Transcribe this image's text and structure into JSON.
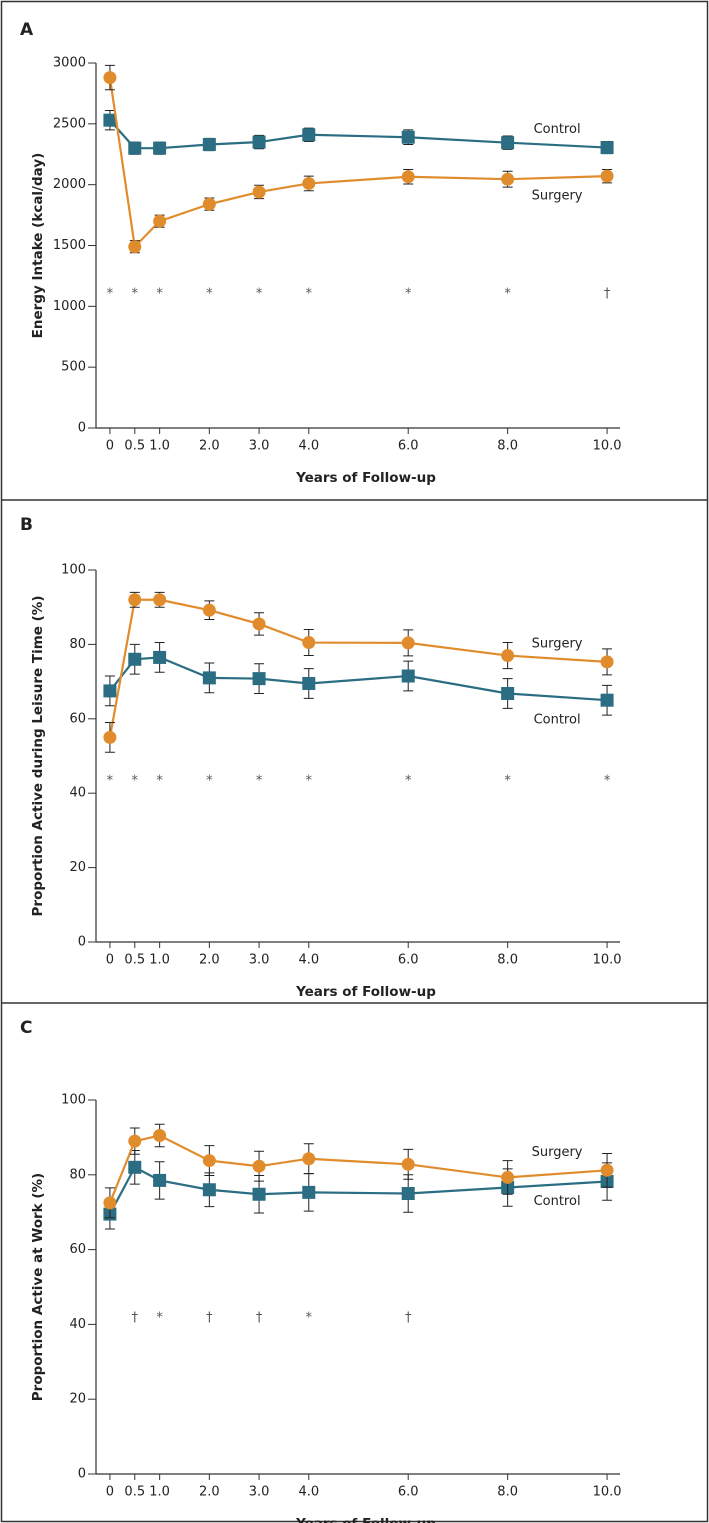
{
  "chart_data": [
    {
      "type": "line",
      "panel_label": "A",
      "ylabel": "Energy Intake (kcal/day)",
      "xlabel": "Years of Follow-up",
      "x": [
        0,
        0.5,
        1,
        2,
        3,
        4,
        6,
        8,
        10
      ],
      "xlim": [
        -0.28,
        10.26
      ],
      "xticks": [
        0,
        0.5,
        {
          "value": 1,
          "label": "1.0"
        },
        {
          "value": 2,
          "label": "2.0"
        },
        {
          "value": 3,
          "label": "3.0"
        },
        {
          "value": 4,
          "label": "4.0"
        },
        {
          "value": 6,
          "label": "6.0"
        },
        {
          "value": 8,
          "label": "8.0"
        },
        {
          "value": 10,
          "label": "10.0"
        }
      ],
      "ylim": [
        0,
        3000
      ],
      "yticks": [
        0,
        500,
        1000,
        1500,
        2000,
        2500,
        3000
      ],
      "series": [
        {
          "name": "Control",
          "color": "#2b6d82",
          "marker": "square",
          "values": [
            2530,
            2300,
            2300,
            2330,
            2350,
            2410,
            2390,
            2345,
            2305
          ],
          "errors": [
            80,
            50,
            50,
            50,
            55,
            55,
            60,
            55,
            50
          ]
        },
        {
          "name": "Surgery",
          "color": "#e18c2c",
          "marker": "circle",
          "values": [
            2880,
            1490,
            1700,
            1840,
            1940,
            2010,
            2065,
            2045,
            2070
          ],
          "errors": [
            100,
            50,
            50,
            50,
            55,
            60,
            60,
            65,
            55
          ]
        }
      ],
      "significance": {
        "x": [
          0,
          0.5,
          1,
          2,
          3,
          4,
          6,
          8,
          10
        ],
        "labels": [
          "*",
          "*",
          "*",
          "*",
          "*",
          "*",
          "*",
          "*",
          "†"
        ]
      }
    },
    {
      "type": "line",
      "panel_label": "B",
      "ylabel": "Proportion Active during Leisure Time (%)",
      "xlabel": "Years of Follow-up",
      "x": [
        0,
        0.5,
        1,
        2,
        3,
        4,
        6,
        8,
        10
      ],
      "xlim": [
        -0.28,
        10.26
      ],
      "xticks": [
        0,
        0.5,
        {
          "value": 1,
          "label": "1.0"
        },
        {
          "value": 2,
          "label": "2.0"
        },
        {
          "value": 3,
          "label": "3.0"
        },
        {
          "value": 4,
          "label": "4.0"
        },
        {
          "value": 6,
          "label": "6.0"
        },
        {
          "value": 8,
          "label": "8.0"
        },
        {
          "value": 10,
          "label": "10.0"
        }
      ],
      "ylim": [
        0,
        100
      ],
      "yticks": [
        0,
        20,
        40,
        60,
        80,
        100
      ],
      "series": [
        {
          "name": "Control",
          "color": "#2b6d82",
          "marker": "square",
          "values": [
            67.5,
            76,
            76.5,
            71,
            70.8,
            69.5,
            71.5,
            66.8,
            65
          ],
          "errors": [
            4,
            4,
            4,
            4,
            4,
            4,
            4,
            4,
            4
          ]
        },
        {
          "name": "Surgery",
          "color": "#e18c2c",
          "marker": "circle",
          "values": [
            55,
            92,
            92,
            89.2,
            85.5,
            80.5,
            80.4,
            77,
            75.3
          ],
          "errors": [
            4,
            2,
            2,
            2.5,
            3,
            3.5,
            3.5,
            3.5,
            3.5
          ]
        }
      ],
      "significance": {
        "x": [
          0,
          0.5,
          1,
          2,
          3,
          4,
          6,
          8,
          10
        ],
        "labels": [
          "*",
          "*",
          "*",
          "*",
          "*",
          "*",
          "*",
          "*",
          "*"
        ]
      }
    },
    {
      "type": "line",
      "panel_label": "C",
      "ylabel": "Proportion Active at Work (%)",
      "xlabel": "Years of Follow-up",
      "x": [
        0,
        0.5,
        1,
        2,
        3,
        4,
        6,
        8,
        10
      ],
      "xlim": [
        -0.28,
        10.26
      ],
      "xticks": [
        0,
        0.5,
        {
          "value": 1,
          "label": "1.0"
        },
        {
          "value": 2,
          "label": "2.0"
        },
        {
          "value": 3,
          "label": "3.0"
        },
        {
          "value": 4,
          "label": "4.0"
        },
        {
          "value": 6,
          "label": "6.0"
        },
        {
          "value": 8,
          "label": "8.0"
        },
        {
          "value": 10,
          "label": "10.0"
        }
      ],
      "ylim": [
        0,
        100
      ],
      "yticks": [
        0,
        20,
        40,
        60,
        80,
        100
      ],
      "series": [
        {
          "name": "Control",
          "color": "#2b6d82",
          "marker": "square",
          "values": [
            69.5,
            82,
            78.5,
            76,
            74.8,
            75.3,
            75,
            76.6,
            78.2
          ],
          "errors": [
            4,
            4.5,
            5,
            4.5,
            5,
            5,
            5,
            5,
            5
          ]
        },
        {
          "name": "Surgery",
          "color": "#e18c2c",
          "marker": "circle",
          "values": [
            72.5,
            89,
            90.5,
            83.8,
            82.3,
            84.3,
            82.8,
            79.3,
            81.2
          ],
          "errors": [
            4,
            3.5,
            3,
            4,
            4,
            4,
            4,
            4.5,
            4.5
          ]
        }
      ],
      "significance": {
        "x": [
          0.5,
          1,
          2,
          3,
          4,
          6
        ],
        "labels": [
          "†",
          "*",
          "†",
          "†",
          "*",
          "†"
        ]
      }
    }
  ]
}
